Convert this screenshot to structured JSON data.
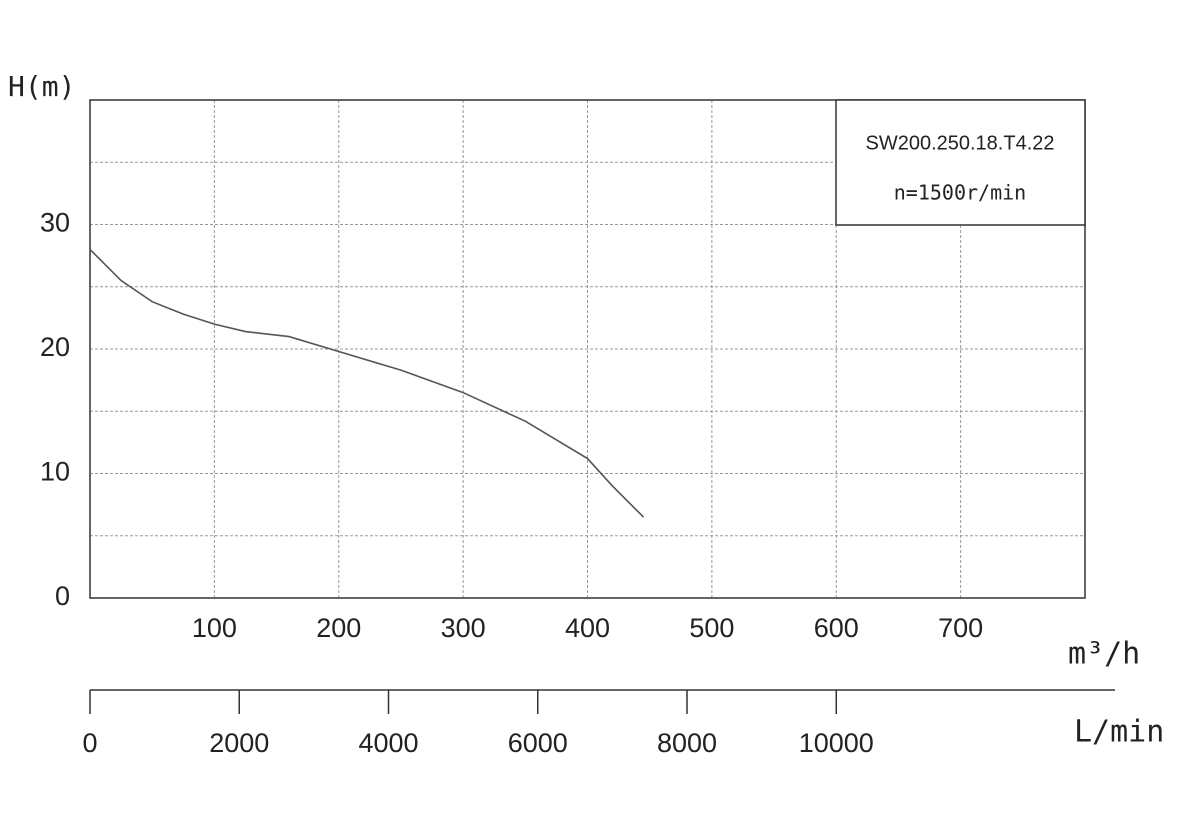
{
  "chart_data": {
    "type": "line",
    "y_label": "H(m)",
    "x_label": "m³/h",
    "x2_label": "L/min",
    "annotations": [
      "SW200.250.18.T4.22",
      "n=1500r/min"
    ],
    "x": [
      0,
      25,
      50,
      75,
      100,
      125,
      160,
      200,
      250,
      300,
      350,
      400,
      420,
      445
    ],
    "series": [
      {
        "color": "#555555",
        "values": [
          28,
          25.5,
          23.8,
          22.8,
          22.0,
          21.4,
          21.0,
          19.8,
          18.3,
          16.5,
          14.2,
          11.2,
          9.0,
          6.5
        ]
      }
    ],
    "xlim": [
      0,
      800
    ],
    "xticks": [
      100,
      200,
      300,
      400,
      500,
      600,
      700
    ],
    "ylim": [
      0,
      40
    ],
    "yticks": [
      0,
      10,
      20,
      30
    ],
    "yminor": [
      5,
      15,
      25,
      35
    ],
    "x2lim": [
      0,
      13333
    ],
    "x2ticks": [
      0,
      2000,
      4000,
      6000,
      8000,
      10000
    ],
    "grid": true
  }
}
